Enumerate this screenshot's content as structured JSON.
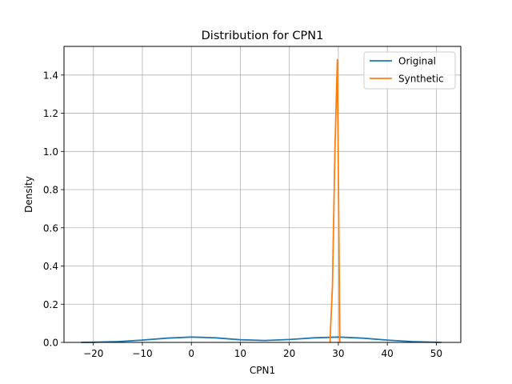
{
  "chart_data": {
    "type": "line",
    "title": "Distribution for CPN1",
    "xlabel": "CPN1",
    "ylabel": "Density",
    "xlim": [
      -26,
      55
    ],
    "ylim": [
      0,
      1.55
    ],
    "xticks": [
      -20,
      -10,
      0,
      10,
      20,
      30,
      40,
      50
    ],
    "xtick_labels": [
      "−20",
      "−10",
      "0",
      "10",
      "20",
      "30",
      "40",
      "50"
    ],
    "yticks": [
      0.0,
      0.2,
      0.4,
      0.6,
      0.8,
      1.0,
      1.2,
      1.4
    ],
    "ytick_labels": [
      "0.0",
      "0.2",
      "0.4",
      "0.6",
      "0.8",
      "1.0",
      "1.2",
      "1.4"
    ],
    "grid": true,
    "legend_position": "top-right",
    "series": [
      {
        "name": "Original",
        "color": "#1f77b4",
        "x": [
          -22.5,
          -20,
          -15,
          -10,
          -5,
          0,
          5,
          10,
          15,
          20,
          25,
          30,
          35,
          40,
          45,
          51
        ],
        "y": [
          0.0,
          0.001,
          0.004,
          0.012,
          0.022,
          0.028,
          0.024,
          0.014,
          0.01,
          0.015,
          0.024,
          0.028,
          0.022,
          0.012,
          0.004,
          0.0
        ]
      },
      {
        "name": "Synthetic",
        "color": "#ff7f0e",
        "x": [
          28.3,
          28.8,
          29.3,
          29.8,
          30.3
        ],
        "y": [
          0.0,
          0.3,
          1.0,
          1.48,
          0.0
        ]
      }
    ]
  }
}
